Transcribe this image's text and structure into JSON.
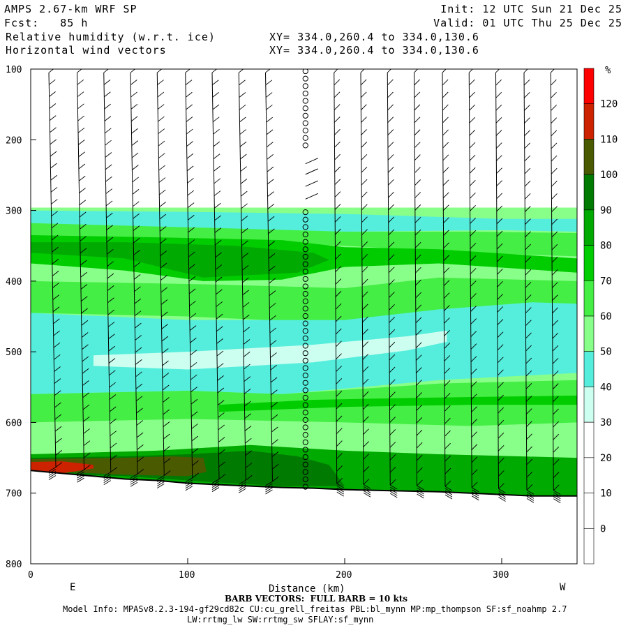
{
  "header": {
    "model": "AMPS 2.67-km WRF SP",
    "fcst": "Fcst:   85 h",
    "field1": "Relative humidity (w.r.t. ice)",
    "field2": "Horizontal wind vectors",
    "init": "Init: 12 UTC Sun 21 Dec 25",
    "valid": "Valid: 01 UTC Thu 25 Dec 25",
    "xy1": "XY= 334.0,260.4 to 334.0,130.6",
    "xy2": "XY= 334.0,260.4 to 334.0,130.6"
  },
  "footer": {
    "barb_note": "BARB VECTORS:  FULL BARB = 10 kts",
    "model_info": "Model Info: MPASv8.2.3-194-gf29cd82c CU:cu_grell_freitas PBL:bl_mynn MP:mp_thompson SF:sf_noahmp 2.7",
    "model_info2": "LW:rrtmg_lw SW:rrtmg_sw SFLAY:sf_mynn"
  },
  "chart_data": {
    "type": "heatmap",
    "xlabel": "Distance (km)",
    "xlim": [
      0,
      348
    ],
    "x_ticks": [
      0,
      100,
      200,
      300
    ],
    "x_ends": [
      "E",
      "W"
    ],
    "ylim": [
      800,
      100
    ],
    "y_ticks": [
      100,
      200,
      300,
      400,
      500,
      600,
      700,
      800
    ],
    "colorbar": {
      "unit": "%",
      "levels": [
        0,
        10,
        20,
        30,
        40,
        50,
        60,
        70,
        80,
        90,
        100,
        110,
        120
      ],
      "colors": [
        "#ffffff",
        "#ffffff",
        "#ffffff",
        "#ffffff",
        "#ccfff0",
        "#55eedd",
        "#88ff88",
        "#44ee44",
        "#00cc00",
        "#00aa00",
        "#007a00",
        "#4a5a00",
        "#cc2200",
        "#ff0000"
      ]
    },
    "surface_pressure_hPa": {
      "x": [
        0,
        20,
        40,
        60,
        80,
        100,
        120,
        140,
        160,
        180,
        200,
        220,
        240,
        260,
        280,
        300,
        320,
        348
      ],
      "p": [
        668,
        672,
        676,
        680,
        682,
        686,
        688,
        690,
        692,
        693,
        695,
        696,
        697,
        698,
        700,
        702,
        704,
        704
      ]
    },
    "rh_top_pressure_hPa": 296,
    "rh_bands": [
      {
        "label": "40-50",
        "p_top": 300,
        "p_bot": 330
      },
      {
        "label": "60-70",
        "p_top": 310,
        "p_bot": 345
      },
      {
        "label": "80-90",
        "p_top": 335,
        "p_bot": 405
      },
      {
        "label": "70-80",
        "p_top": 405,
        "p_bot": 460
      },
      {
        "label": "40-50",
        "p_top": 460,
        "p_bot": 560
      },
      {
        "label": "30-40",
        "p_top": 465,
        "p_bot": 535
      },
      {
        "label": "60-80",
        "p_top": 560,
        "p_bot": 640
      },
      {
        "label": "90-100",
        "p_top": 640,
        "p_bot": 700
      },
      {
        "label": "100-110",
        "p_top": 645,
        "p_bot": 690
      },
      {
        "label": "110-130",
        "p_top": 648,
        "p_bot": 670
      }
    ],
    "barb_columns_km": [
      16,
      34,
      51,
      68,
      85,
      103,
      120,
      137,
      154,
      175,
      195,
      212,
      229,
      246,
      264,
      281,
      298,
      316,
      333
    ],
    "calm_column_km": 175
  }
}
